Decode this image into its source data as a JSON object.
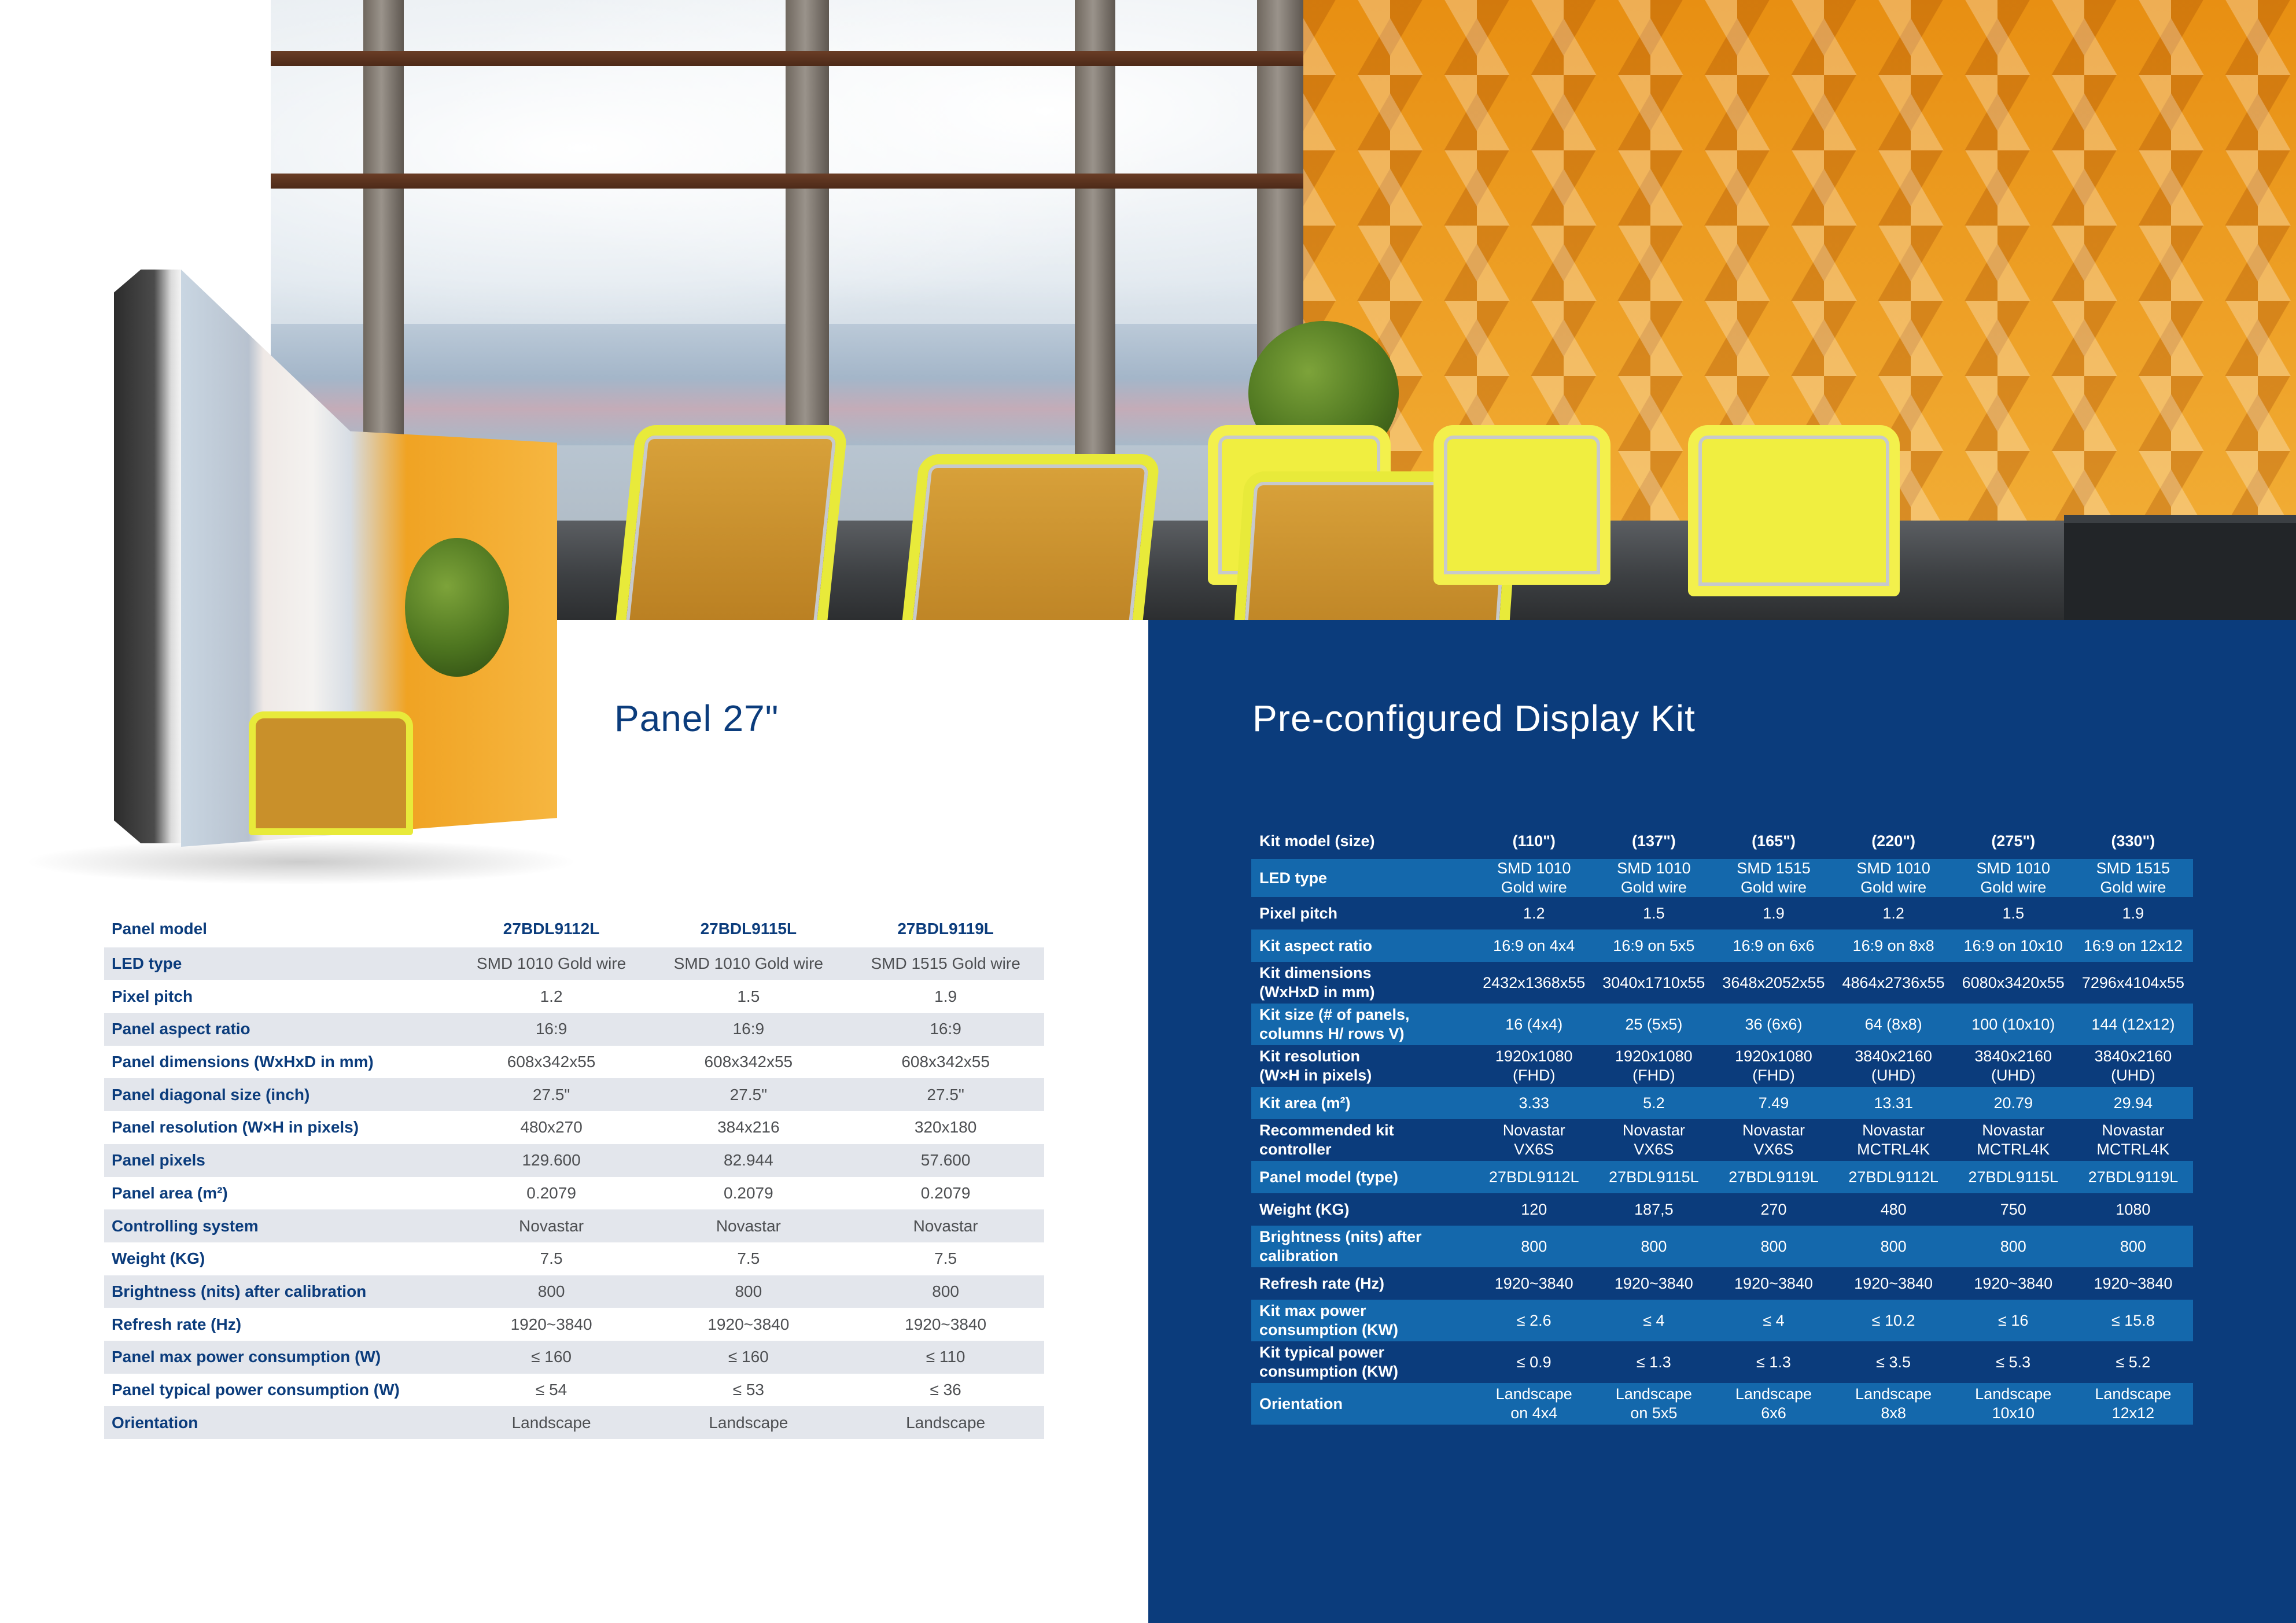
{
  "headings": {
    "panel": "Panel 27\"",
    "kit": "Pre-configured Display Kit"
  },
  "panel_table": {
    "header_label": "Panel model",
    "models": [
      "27BDL9112L",
      "27BDL9115L",
      "27BDL9119L"
    ],
    "rows": [
      {
        "label": "LED type",
        "values": [
          "SMD 1010 Gold wire",
          "SMD 1010 Gold wire",
          "SMD 1515 Gold wire"
        ]
      },
      {
        "label": "Pixel pitch",
        "values": [
          "1.2",
          "1.5",
          "1.9"
        ]
      },
      {
        "label": "Panel aspect ratio",
        "values": [
          "16:9",
          "16:9",
          "16:9"
        ]
      },
      {
        "label": "Panel dimensions (WxHxD in mm)",
        "values": [
          "608x342x55",
          "608x342x55",
          "608x342x55"
        ]
      },
      {
        "label": "Panel diagonal size (inch)",
        "values": [
          "27.5\"",
          "27.5\"",
          "27.5\""
        ]
      },
      {
        "label": "Panel resolution (W×H in pixels)",
        "values": [
          "480x270",
          "384x216",
          "320x180"
        ]
      },
      {
        "label": "Panel pixels",
        "values": [
          "129.600",
          "82.944",
          "57.600"
        ]
      },
      {
        "label": "Panel area (m²)",
        "values": [
          "0.2079",
          "0.2079",
          "0.2079"
        ]
      },
      {
        "label": "Controlling system",
        "values": [
          "Novastar",
          "Novastar",
          "Novastar"
        ]
      },
      {
        "label": "Weight (KG)",
        "values": [
          "7.5",
          "7.5",
          "7.5"
        ]
      },
      {
        "label": "Brightness (nits) after calibration",
        "values": [
          "800",
          "800",
          "800"
        ]
      },
      {
        "label": "Refresh rate (Hz)",
        "values": [
          "1920~3840",
          "1920~3840",
          "1920~3840"
        ]
      },
      {
        "label": "Panel max power consumption (W)",
        "values": [
          "≤ 160",
          "≤ 160",
          "≤ 110"
        ]
      },
      {
        "label": "Panel typical power consumption (W)",
        "values": [
          "≤ 54",
          "≤ 53",
          "≤ 36"
        ]
      },
      {
        "label": "Orientation",
        "values": [
          "Landscape",
          "Landscape",
          "Landscape"
        ]
      }
    ]
  },
  "kit_table": {
    "header_label": "Kit model (size)",
    "sizes": [
      "(110\")",
      "(137\")",
      "(165\")",
      "(220\")",
      "(275\")",
      "(330\")"
    ],
    "rows": [
      {
        "label": [
          "LED type"
        ],
        "values": [
          [
            "SMD 1010",
            "Gold wire"
          ],
          [
            "SMD 1010",
            "Gold wire"
          ],
          [
            "SMD 1515",
            "Gold wire"
          ],
          [
            "SMD 1010",
            "Gold wire"
          ],
          [
            "SMD 1010",
            "Gold wire"
          ],
          [
            "SMD 1515",
            "Gold wire"
          ]
        ]
      },
      {
        "label": [
          "Pixel pitch"
        ],
        "values": [
          [
            "1.2"
          ],
          [
            "1.5"
          ],
          [
            "1.9"
          ],
          [
            "1.2"
          ],
          [
            "1.5"
          ],
          [
            "1.9"
          ]
        ]
      },
      {
        "label": [
          "Kit aspect ratio"
        ],
        "values": [
          [
            "16:9 on 4x4"
          ],
          [
            "16:9 on 5x5"
          ],
          [
            "16:9 on 6x6"
          ],
          [
            "16:9 on 8x8"
          ],
          [
            "16:9 on 10x10"
          ],
          [
            "16:9 on 12x12"
          ]
        ]
      },
      {
        "label": [
          "Kit dimensions",
          "(WxHxD in mm)"
        ],
        "values": [
          [
            "2432x1368x55"
          ],
          [
            "3040x1710x55"
          ],
          [
            "3648x2052x55"
          ],
          [
            "4864x2736x55"
          ],
          [
            "6080x3420x55"
          ],
          [
            "7296x4104x55"
          ]
        ]
      },
      {
        "label": [
          "Kit size (# of panels,",
          "columns H/ rows V)"
        ],
        "values": [
          [
            "16 (4x4)"
          ],
          [
            "25 (5x5)"
          ],
          [
            "36 (6x6)"
          ],
          [
            "64 (8x8)"
          ],
          [
            "100 (10x10)"
          ],
          [
            "144 (12x12)"
          ]
        ]
      },
      {
        "label": [
          "Kit resolution",
          "(W×H in pixels)"
        ],
        "values": [
          [
            "1920x1080",
            "(FHD)"
          ],
          [
            "1920x1080",
            "(FHD)"
          ],
          [
            "1920x1080",
            "(FHD)"
          ],
          [
            "3840x2160",
            "(UHD)"
          ],
          [
            "3840x2160",
            "(UHD)"
          ],
          [
            "3840x2160",
            "(UHD)"
          ]
        ]
      },
      {
        "label": [
          "Kit area (m²)"
        ],
        "values": [
          [
            "3.33"
          ],
          [
            "5.2"
          ],
          [
            "7.49"
          ],
          [
            "13.31"
          ],
          [
            "20.79"
          ],
          [
            "29.94"
          ]
        ]
      },
      {
        "label": [
          "Recommended kit",
          "controller"
        ],
        "values": [
          [
            "Novastar",
            "VX6S"
          ],
          [
            "Novastar",
            "VX6S"
          ],
          [
            "Novastar",
            "VX6S"
          ],
          [
            "Novastar",
            "MCTRL4K"
          ],
          [
            "Novastar",
            "MCTRL4K"
          ],
          [
            "Novastar",
            "MCTRL4K"
          ]
        ]
      },
      {
        "label": [
          "Panel model (type)"
        ],
        "values": [
          [
            "27BDL9112L"
          ],
          [
            "27BDL9115L"
          ],
          [
            "27BDL9119L"
          ],
          [
            "27BDL9112L"
          ],
          [
            "27BDL9115L"
          ],
          [
            "27BDL9119L"
          ]
        ]
      },
      {
        "label": [
          "Weight (KG)"
        ],
        "values": [
          [
            "120"
          ],
          [
            "187,5"
          ],
          [
            "270"
          ],
          [
            "480"
          ],
          [
            "750"
          ],
          [
            "1080"
          ]
        ]
      },
      {
        "label": [
          "Brightness (nits) after",
          "calibration"
        ],
        "values": [
          [
            "800"
          ],
          [
            "800"
          ],
          [
            "800"
          ],
          [
            "800"
          ],
          [
            "800"
          ],
          [
            "800"
          ]
        ]
      },
      {
        "label": [
          "Refresh rate (Hz)"
        ],
        "values": [
          [
            "1920~3840"
          ],
          [
            "1920~3840"
          ],
          [
            "1920~3840"
          ],
          [
            "1920~3840"
          ],
          [
            "1920~3840"
          ],
          [
            "1920~3840"
          ]
        ]
      },
      {
        "label": [
          "Kit max power",
          "consumption (KW)"
        ],
        "values": [
          [
            "≤ 2.6"
          ],
          [
            "≤ 4"
          ],
          [
            "≤ 4"
          ],
          [
            "≤ 10.2"
          ],
          [
            "≤ 16"
          ],
          [
            "≤ 15.8"
          ]
        ]
      },
      {
        "label": [
          "Kit typical power",
          "consumption (KW)"
        ],
        "values": [
          [
            "≤ 0.9"
          ],
          [
            "≤ 1.3"
          ],
          [
            "≤ 1.3"
          ],
          [
            "≤ 3.5"
          ],
          [
            "≤ 5.3"
          ],
          [
            "≤ 5.2"
          ]
        ]
      },
      {
        "label": [
          "Orientation"
        ],
        "values": [
          [
            "Landscape",
            "on 4x4"
          ],
          [
            "Landscape",
            "on 5x5"
          ],
          [
            "Landscape",
            "6x6"
          ],
          [
            "Landscape",
            "8x8"
          ],
          [
            "Landscape",
            "10x10"
          ],
          [
            "Landscape",
            "12x12"
          ]
        ]
      }
    ]
  },
  "colors": {
    "brand_blue": "#0b3c7c",
    "kit_row_shade": "#1468ac",
    "panel_row_shade": "#e3e6ec",
    "value_text": "#4d4f52"
  }
}
